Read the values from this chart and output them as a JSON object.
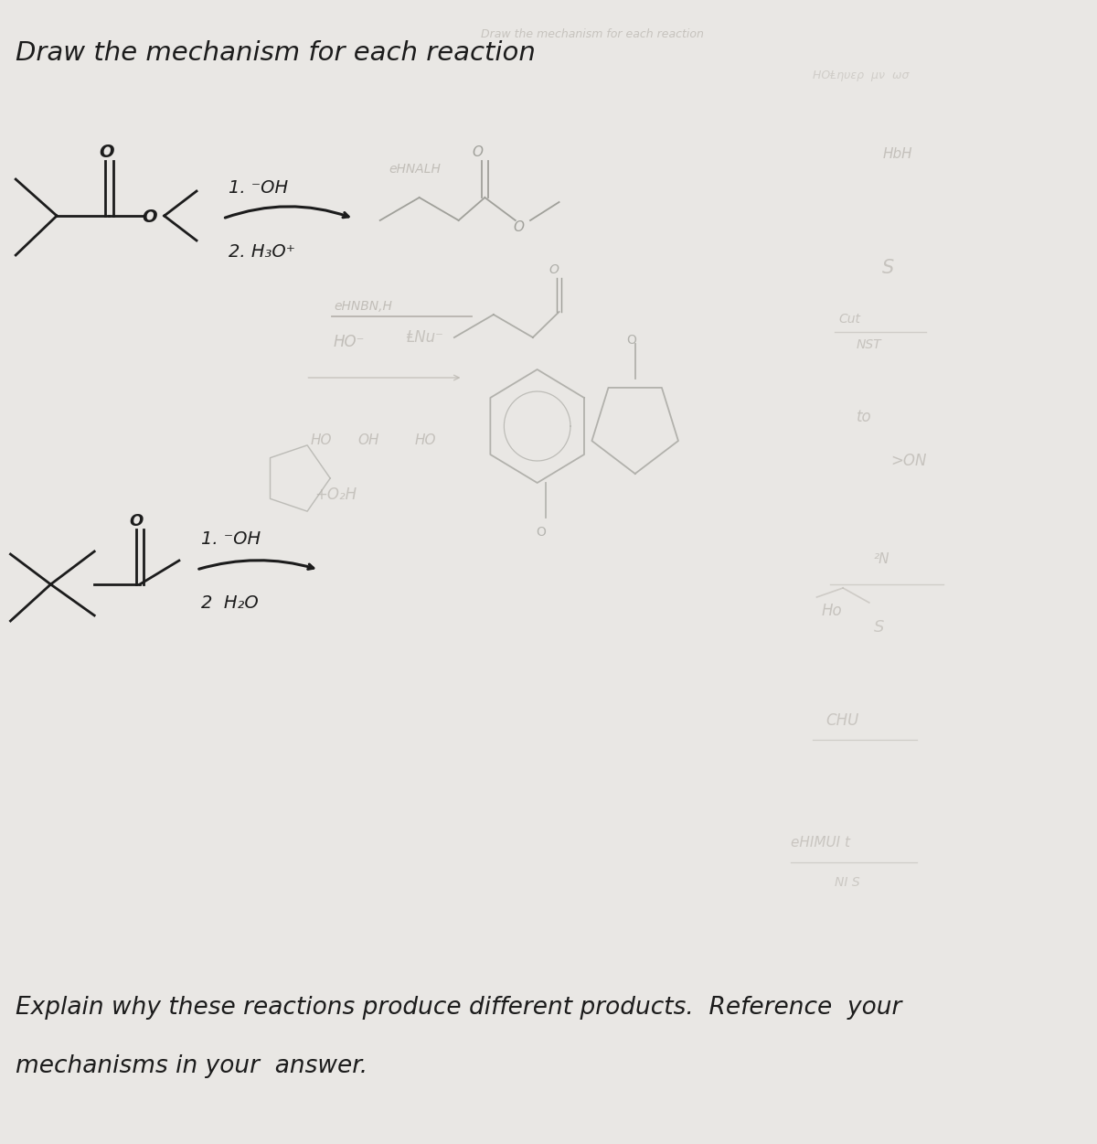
{
  "bg_color": "#e9e7e4",
  "title": "Draw the mechanism for each reaction",
  "title_fontsize": 21,
  "explain_line1": "Explain why these reactions produce different products.  Reference  your",
  "explain_line2": "mechanisms in your  answer.",
  "explain_fontsize": 19,
  "reaction1_label1": "1. ⁻OH",
  "reaction1_label2": "2. H₃O⁺",
  "reaction2_label1": "1. ⁻OH",
  "reaction2_label2": "2  H₂O",
  "text_color": "#1c1c1c",
  "faded_color": "#b8b4ae",
  "faded_dark": "#a0a09a"
}
